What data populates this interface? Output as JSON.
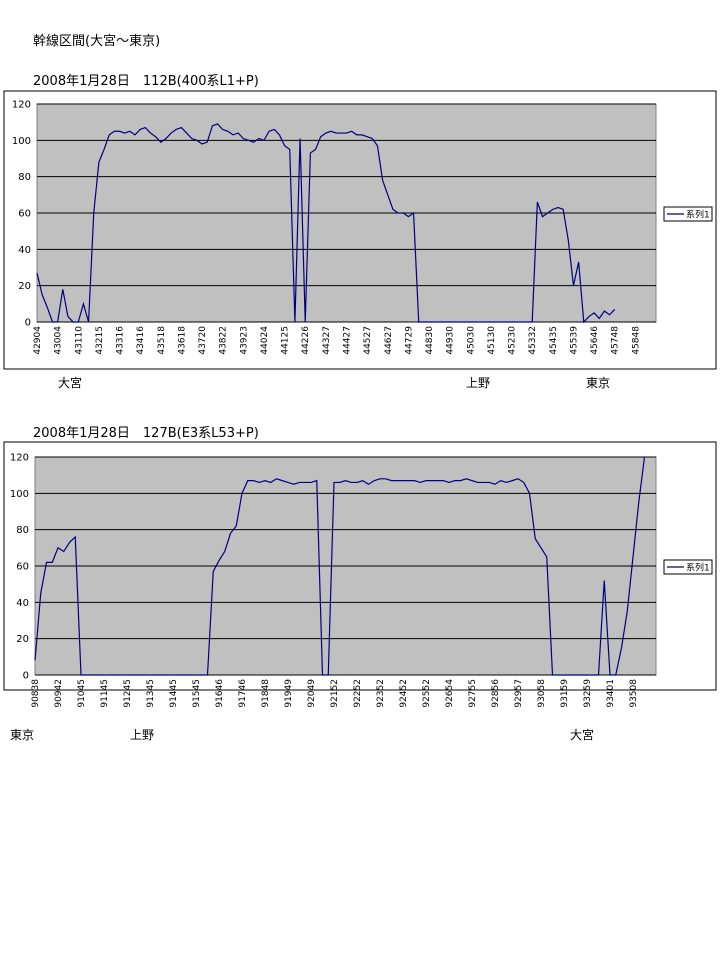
{
  "title": "幹線区間(大宮～東京)",
  "chart_data": [
    {
      "type": "line",
      "subtitle": "2008年1月28日　112B(400系L1+P)",
      "categories": [
        "42904",
        null,
        null,
        null,
        "43004",
        null,
        null,
        null,
        "43110",
        null,
        null,
        null,
        "43215",
        null,
        null,
        null,
        "43316",
        null,
        null,
        null,
        "43416",
        null,
        null,
        null,
        "43518",
        null,
        null,
        null,
        "43618",
        null,
        null,
        null,
        "43720",
        null,
        null,
        null,
        "43822",
        null,
        null,
        null,
        "43923",
        null,
        null,
        null,
        "44024",
        null,
        null,
        null,
        "44125",
        null,
        null,
        null,
        "44226",
        null,
        null,
        null,
        "44327",
        null,
        null,
        null,
        "44427",
        null,
        null,
        null,
        "44527",
        null,
        null,
        null,
        "44627",
        null,
        null,
        null,
        "44729",
        null,
        null,
        null,
        "44830",
        null,
        null,
        null,
        "44930",
        null,
        null,
        null,
        "45030",
        null,
        null,
        null,
        "45130",
        null,
        null,
        null,
        "45230",
        null,
        null,
        null,
        "45332",
        null,
        null,
        null,
        "45435",
        null,
        null,
        null,
        "45539",
        null,
        null,
        null,
        "45646",
        null,
        null,
        null,
        "45748",
        null,
        null,
        null,
        "45848",
        null,
        null,
        null
      ],
      "series": [
        {
          "name": "系列1",
          "color": "#000080",
          "values": [
            27,
            15,
            8,
            0,
            0,
            18,
            3,
            0,
            0,
            10,
            0,
            60,
            88,
            95,
            103,
            105,
            105,
            104,
            105,
            103,
            106,
            107,
            104,
            102,
            99,
            101,
            104,
            106,
            107,
            104,
            101,
            100,
            98,
            99,
            108,
            109,
            106,
            105,
            103,
            104,
            101,
            100,
            99,
            101,
            100,
            105,
            106,
            103,
            97,
            95,
            0,
            101,
            0,
            93,
            95,
            102,
            104,
            105,
            104,
            104,
            104,
            105,
            103,
            103,
            102,
            101,
            97,
            78,
            70,
            62,
            60,
            60,
            58,
            60,
            0,
            0,
            0,
            0,
            0,
            0,
            0,
            0,
            0,
            0,
            0,
            0,
            0,
            0,
            0,
            0,
            0,
            0,
            0,
            0,
            0,
            0,
            0,
            66,
            58,
            60,
            62,
            63,
            62,
            45,
            20,
            33,
            0,
            3,
            5,
            2,
            6,
            4,
            7,
            null,
            null,
            null,
            null,
            null,
            null,
            null
          ]
        }
      ],
      "ylim": [
        0,
        120
      ],
      "yticks": [
        0,
        20,
        40,
        60,
        80,
        100,
        120
      ],
      "grid": true,
      "legend": "right",
      "stations": [
        "大宮",
        "上野",
        "東京"
      ]
    },
    {
      "type": "line",
      "subtitle": "2008年1月28日　127B(E3系L53+P)",
      "categories": [
        "90838",
        null,
        null,
        null,
        "90942",
        null,
        null,
        null,
        "91045",
        null,
        null,
        null,
        "91145",
        null,
        null,
        null,
        "91245",
        null,
        null,
        null,
        "91345",
        null,
        null,
        null,
        "91445",
        null,
        null,
        null,
        "91545",
        null,
        null,
        null,
        "91646",
        null,
        null,
        null,
        "91746",
        null,
        null,
        null,
        "91848",
        null,
        null,
        null,
        "91949",
        null,
        null,
        null,
        "92049",
        null,
        null,
        null,
        "92152",
        null,
        null,
        null,
        "92252",
        null,
        null,
        null,
        "92352",
        null,
        null,
        null,
        "92452",
        null,
        null,
        null,
        "92552",
        null,
        null,
        null,
        "92654",
        null,
        null,
        null,
        "92755",
        null,
        null,
        null,
        "92856",
        null,
        null,
        null,
        "92957",
        null,
        null,
        null,
        "93058",
        null,
        null,
        null,
        "93159",
        null,
        null,
        null,
        "93259",
        null,
        null,
        null,
        "93401",
        null,
        null,
        null,
        "93508",
        null,
        null,
        null
      ],
      "series": [
        {
          "name": "系列1",
          "color": "#000080",
          "values": [
            8,
            45,
            62,
            62,
            70,
            68,
            73,
            76,
            0,
            0,
            0,
            0,
            0,
            0,
            0,
            0,
            0,
            0,
            0,
            0,
            0,
            0,
            0,
            0,
            0,
            0,
            0,
            0,
            0,
            0,
            0,
            57,
            63,
            68,
            78,
            82,
            100,
            107,
            107,
            106,
            107,
            106,
            108,
            107,
            106,
            105,
            106,
            106,
            106,
            107,
            0,
            0,
            106,
            106,
            107,
            106,
            106,
            107,
            105,
            107,
            108,
            108,
            107,
            107,
            107,
            107,
            107,
            106,
            107,
            107,
            107,
            107,
            106,
            107,
            107,
            108,
            107,
            106,
            106,
            106,
            105,
            107,
            106,
            107,
            108,
            106,
            100,
            75,
            70,
            65,
            0,
            0,
            0,
            0,
            0,
            0,
            0,
            0,
            0,
            52,
            0,
            0,
            15,
            35,
            65,
            95,
            120,
            null
          ]
        }
      ],
      "ylim": [
        0,
        120
      ],
      "yticks": [
        0,
        20,
        40,
        60,
        80,
        100,
        120
      ],
      "grid": true,
      "legend": "right",
      "stations": [
        "東京",
        "上野",
        "大宮"
      ]
    }
  ]
}
